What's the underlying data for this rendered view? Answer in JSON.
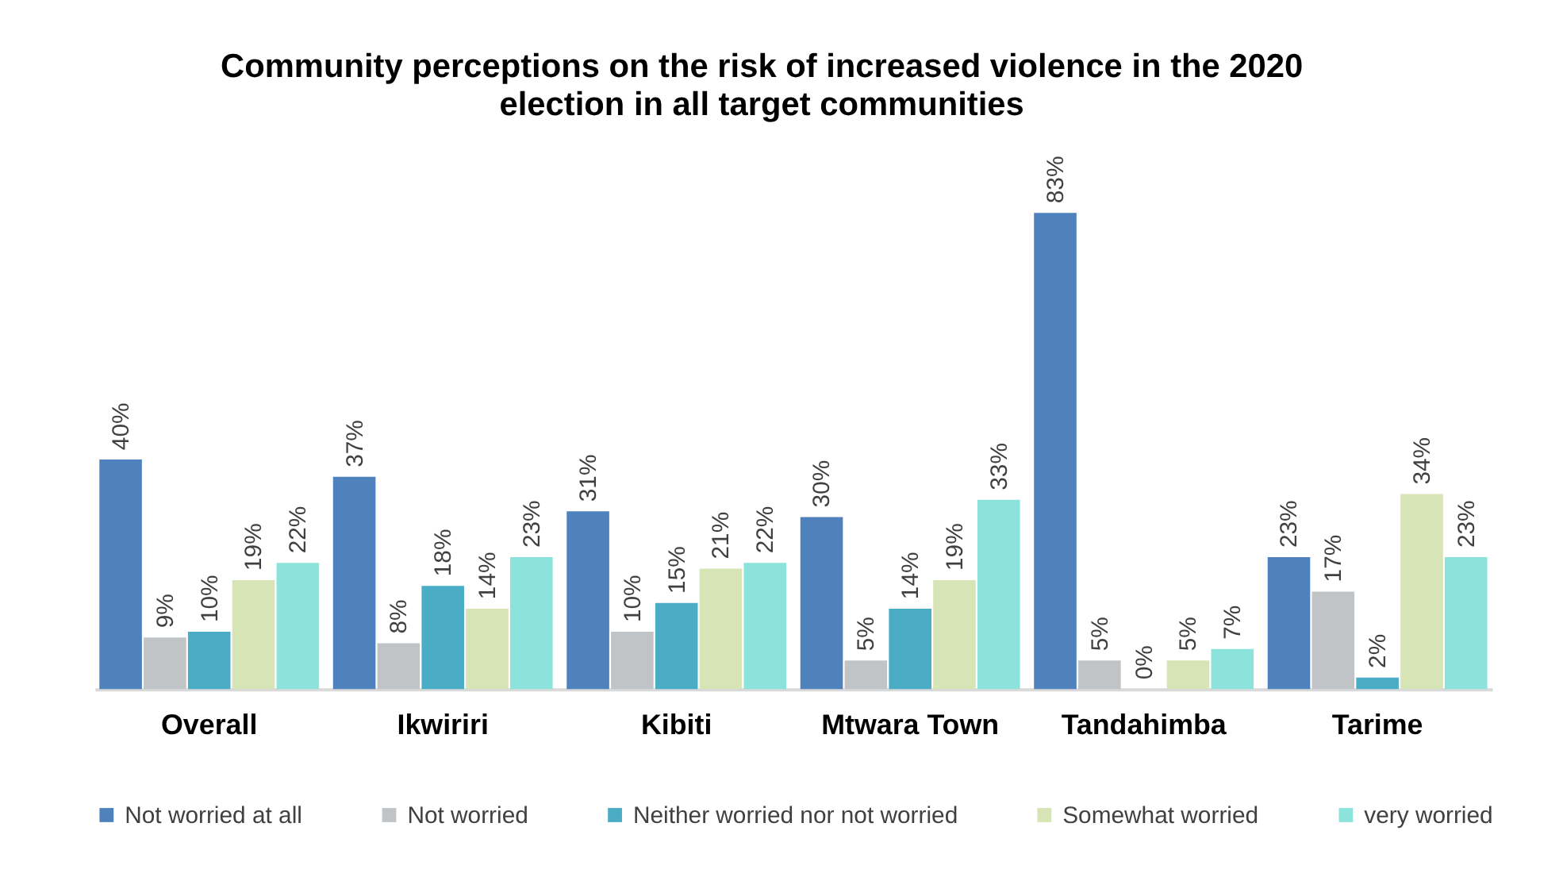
{
  "chart_data": {
    "type": "bar",
    "title": "Community perceptions on the risk of increased violence in the 2020\nelection in all target communities",
    "categories": [
      "Overall",
      "Ikwiriri",
      "Kibiti",
      "Mtwara Town",
      "Tandahimba",
      "Tarime"
    ],
    "series": [
      {
        "name": "Not worried at all",
        "color": "#4f81bd",
        "values": [
          40,
          37,
          31,
          30,
          83,
          23
        ],
        "value_labels": [
          "40%",
          "37%",
          "31%",
          "30%",
          "83%",
          "23%"
        ]
      },
      {
        "name": "Not worried",
        "color": "#c0c4c7",
        "values": [
          9,
          8,
          10,
          5,
          5,
          17
        ],
        "value_labels": [
          "9%",
          "8%",
          "10%",
          "5%",
          "5%",
          "17%"
        ]
      },
      {
        "name": "Neither worried nor not worried",
        "color": "#4bacc6",
        "values": [
          10,
          18,
          15,
          14,
          0,
          2
        ],
        "value_labels": [
          "10%",
          "18%",
          "15%",
          "14%",
          "0%",
          "2%"
        ]
      },
      {
        "name": "Somewhat worried",
        "color": "#d7e4b5",
        "values": [
          19,
          14,
          21,
          19,
          5,
          34
        ],
        "value_labels": [
          "19%",
          "14%",
          "21%",
          "19%",
          "5%",
          "34%"
        ]
      },
      {
        "name": "very  worried",
        "color": "#8ce3db",
        "values": [
          22,
          23,
          22,
          33,
          7,
          23
        ],
        "value_labels": [
          "22%",
          "23%",
          "22%",
          "33%",
          "7%",
          "23%"
        ]
      }
    ],
    "legend": "bottom",
    "tick_labels": "x"
  }
}
